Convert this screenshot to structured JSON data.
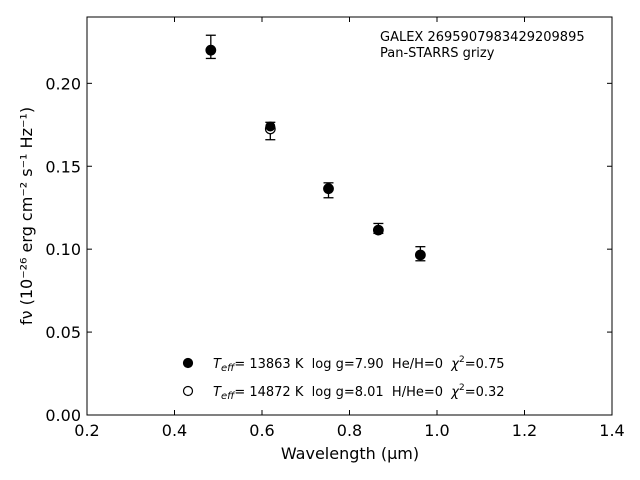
{
  "chart_data": {
    "type": "scatter",
    "annotation": [
      "GALEX 2695907983429209895",
      "Pan-STARRS grizy"
    ],
    "xlabel": "Wavelength (μm)",
    "ylabel": "fν (10⁻²⁶ erg cm⁻² s⁻¹ Hz⁻¹)",
    "xlim": [
      0.2,
      1.4
    ],
    "ylim": [
      0.0,
      0.24
    ],
    "xticks": [
      "0.2",
      "0.4",
      "0.6",
      "0.8",
      "1.0",
      "1.2",
      "1.4"
    ],
    "yticks": [
      "0.00",
      "0.05",
      "0.10",
      "0.15",
      "0.20"
    ],
    "grid": false,
    "legend_position": "bottom-center",
    "observed": {
      "x": [
        0.483,
        0.619,
        0.752,
        0.866,
        0.962
      ],
      "y": [
        0.2215,
        0.1705,
        0.1355,
        0.112,
        0.0965
      ],
      "err_low": [
        0.0065,
        0.0045,
        0.0045,
        0.0025,
        0.0035
      ],
      "err_high": [
        0.0075,
        0.006,
        0.0045,
        0.0035,
        0.005
      ]
    },
    "series": [
      {
        "marker": "filled-circle",
        "color": "#000000",
        "x": [
          0.483,
          0.619,
          0.752,
          0.866,
          0.962
        ],
        "y": [
          0.22,
          0.174,
          0.1365,
          0.1115,
          0.0965
        ]
      },
      {
        "marker": "open-circle",
        "color": "#000000",
        "x": [
          0.483,
          0.619,
          0.752,
          0.866,
          0.962
        ],
        "y": [
          0.22,
          0.1725,
          0.1365,
          0.1115,
          0.0965
        ]
      }
    ],
    "legend": [
      {
        "marker": "filled-circle",
        "teff_symbol": "T",
        "teff_sub": "eff",
        "text": "= 13863 K  log g=7.90  He/H=0  ",
        "chi_label": "χ",
        "chi_sup": "2",
        "chi_value": "=0.75"
      },
      {
        "marker": "open-circle",
        "teff_symbol": "T",
        "teff_sub": "eff",
        "text": "= 14872 K  log g=8.01  H/He=0  ",
        "chi_label": "χ",
        "chi_sup": "2",
        "chi_value": "=0.32"
      }
    ]
  }
}
